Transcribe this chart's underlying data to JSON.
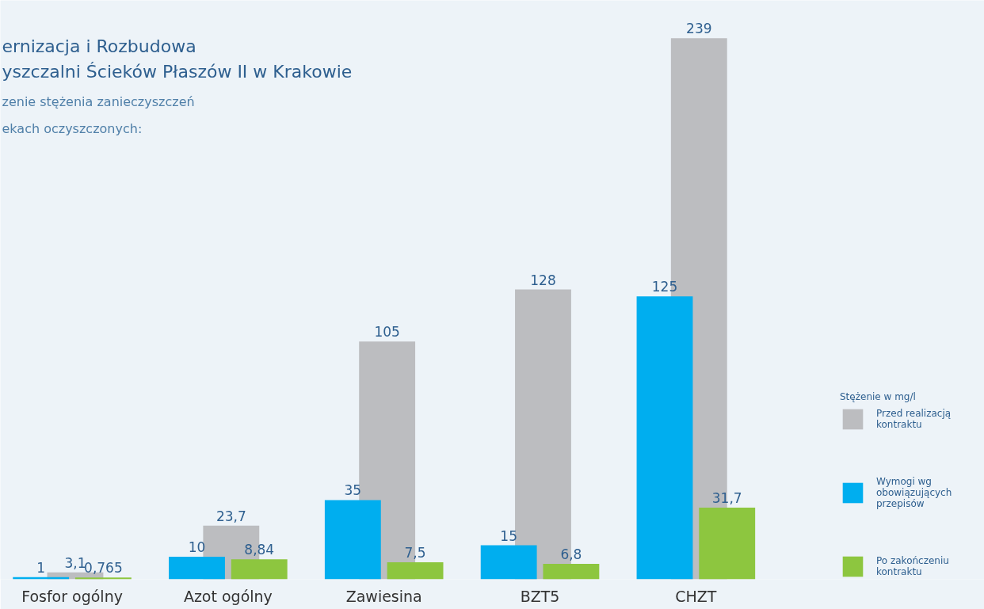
{
  "chart_data": {
    "type": "bar",
    "annotations": [
      "ernizacja i Rozbudowa",
      "yszczalni Ścieków Płaszów II w Krakowie",
      "zenie stężenia zanieczyszczeń",
      "ekach oczyszczonych:"
    ],
    "legend_title": "Stężenie w mg/l",
    "categories": [
      "Fosfor ogólny",
      "Azot ogólny",
      "Zawiesina",
      "BZT5",
      "CHZT"
    ],
    "series": [
      {
        "name": "Przed realizacją kontraktu",
        "color": "#bcbdc0",
        "values": [
          3.1,
          23.7,
          105,
          128,
          239
        ],
        "value_labels": [
          "3,1",
          "23,7",
          "105",
          "128",
          "239"
        ]
      },
      {
        "name": "Wymogi wg obowiązujących przepisów",
        "color": "#00aeef",
        "values": [
          1,
          10,
          35,
          15,
          125
        ],
        "value_labels": [
          "1",
          "10",
          "35",
          "15",
          "125"
        ]
      },
      {
        "name": "Po zakończeniu kontraktu",
        "color": "#8dc63f",
        "values": [
          0.765,
          8.84,
          7.5,
          6.8,
          31.7
        ],
        "value_labels": [
          "0,765",
          "8,84",
          "7,5",
          "6,8",
          "31,7"
        ]
      }
    ],
    "legend": "right"
  }
}
